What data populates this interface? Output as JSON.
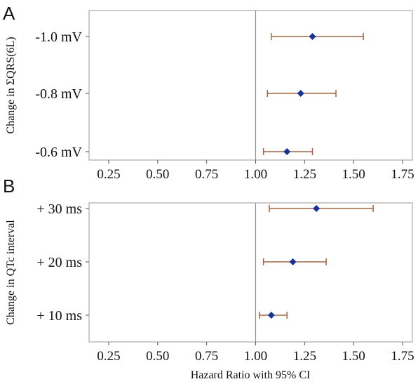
{
  "colors": {
    "ci": "#b0603a",
    "point": "#1434a4",
    "frame": "#9a9a9a",
    "reference_line": "#8f8f8f"
  },
  "figure": {
    "xlabel": "Hazard Ratio with 95% CI"
  },
  "chart_data": [
    {
      "type": "forest",
      "panel": "A",
      "ylabel": "Change in ΣQRS(6L)",
      "xlim": [
        0.15,
        1.8
      ],
      "xticks": [
        0.25,
        0.5,
        0.75,
        1.0,
        1.25,
        1.5,
        1.75
      ],
      "xtick_labels": [
        "0.25",
        "0.50",
        "0.75",
        "1.00",
        "1.25",
        "1.50",
        "1.75"
      ],
      "reference_line": 1.0,
      "categories": [
        "-1.0 mV",
        "-0.8 mV",
        "-0.6 mV"
      ],
      "estimates": [
        1.29,
        1.23,
        1.16
      ],
      "ci_lower": [
        1.08,
        1.06,
        1.04
      ],
      "ci_upper": [
        1.55,
        1.41,
        1.29
      ]
    },
    {
      "type": "forest",
      "panel": "B",
      "ylabel": "Change in QTc interval",
      "xlim": [
        0.15,
        1.8
      ],
      "xticks": [
        0.25,
        0.5,
        0.75,
        1.0,
        1.25,
        1.5,
        1.75
      ],
      "xtick_labels": [
        "0.25",
        "0.50",
        "0.75",
        "1.00",
        "1.25",
        "1.50",
        "1.75"
      ],
      "reference_line": 1.0,
      "categories": [
        "+ 30 ms",
        "+ 20 ms",
        "+ 10 ms"
      ],
      "estimates": [
        1.31,
        1.19,
        1.08
      ],
      "ci_lower": [
        1.07,
        1.04,
        1.02
      ],
      "ci_upper": [
        1.6,
        1.36,
        1.16
      ]
    }
  ]
}
